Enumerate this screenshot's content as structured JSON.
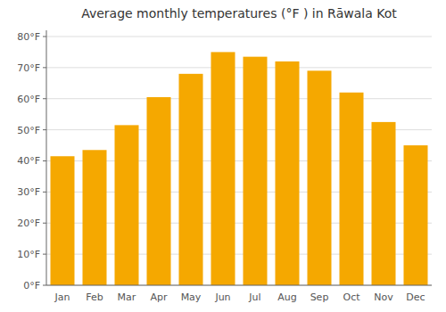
{
  "chart_data": {
    "type": "bar",
    "title": "Average monthly temperatures (°F ) in Rāwala Kot",
    "categories": [
      "Jan",
      "Feb",
      "Mar",
      "Apr",
      "May",
      "Jun",
      "Jul",
      "Aug",
      "Sep",
      "Oct",
      "Nov",
      "Dec"
    ],
    "values": [
      41.5,
      43.5,
      51.5,
      60.5,
      68.0,
      75.0,
      73.5,
      72.0,
      69.0,
      62.0,
      52.5,
      45.0
    ],
    "color": "#F5A800",
    "ylim": [
      0,
      82
    ],
    "yticks": [
      {
        "value": 0,
        "label": "0°F"
      },
      {
        "value": 10,
        "label": "10°F"
      },
      {
        "value": 20,
        "label": "20°F"
      },
      {
        "value": 30,
        "label": "30°F"
      },
      {
        "value": 40,
        "label": "40°F"
      },
      {
        "value": 50,
        "label": "50°F"
      },
      {
        "value": 60,
        "label": "60°F"
      },
      {
        "value": 70,
        "label": "70°F"
      },
      {
        "value": 80,
        "label": "80°F"
      }
    ],
    "grid": true
  }
}
